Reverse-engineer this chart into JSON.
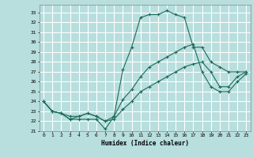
{
  "xlabel": "Humidex (Indice chaleur)",
  "background_color": "#b8dede",
  "grid_color": "#ffffff",
  "line_color": "#1a6b5a",
  "xlim": [
    -0.5,
    23.5
  ],
  "ylim": [
    21,
    33.8
  ],
  "xticks": [
    0,
    1,
    2,
    3,
    4,
    5,
    6,
    7,
    8,
    9,
    10,
    11,
    12,
    13,
    14,
    15,
    16,
    17,
    18,
    19,
    20,
    21,
    22,
    23
  ],
  "yticks": [
    21,
    22,
    23,
    24,
    25,
    26,
    27,
    28,
    29,
    30,
    31,
    32,
    33
  ],
  "line1_x": [
    0,
    1,
    2,
    3,
    4,
    5,
    6,
    7,
    8,
    9,
    10,
    11,
    12,
    13,
    14,
    15,
    16,
    17,
    18,
    19,
    20,
    21,
    22,
    23
  ],
  "line1_y": [
    24,
    23,
    22.8,
    22.2,
    22.2,
    22.2,
    22.2,
    21.2,
    22.5,
    27.2,
    29.5,
    32.5,
    32.8,
    32.8,
    33.2,
    32.8,
    32.5,
    29.5,
    29.5,
    28,
    27.5,
    27,
    27,
    27
  ],
  "line2_x": [
    0,
    1,
    2,
    3,
    4,
    5,
    6,
    7,
    8,
    9,
    10,
    11,
    12,
    13,
    14,
    15,
    16,
    17,
    18,
    19,
    20,
    21,
    22,
    23
  ],
  "line2_y": [
    24,
    23,
    22.8,
    22.5,
    22.5,
    22.8,
    22.5,
    22,
    22.5,
    24.2,
    25.2,
    26.5,
    27.5,
    28,
    28.5,
    29,
    29.5,
    29.8,
    27,
    25.5,
    25,
    25,
    26,
    26.8
  ],
  "line3_x": [
    0,
    1,
    2,
    3,
    4,
    5,
    6,
    7,
    8,
    9,
    10,
    11,
    12,
    13,
    14,
    15,
    16,
    17,
    18,
    19,
    20,
    21,
    22,
    23
  ],
  "line3_y": [
    24,
    23,
    22.8,
    22.2,
    22.5,
    22.8,
    22.5,
    22,
    22.2,
    23.2,
    24,
    25,
    25.5,
    26,
    26.5,
    27,
    27.5,
    27.8,
    28,
    27,
    25.5,
    25.5,
    26.5,
    27
  ]
}
